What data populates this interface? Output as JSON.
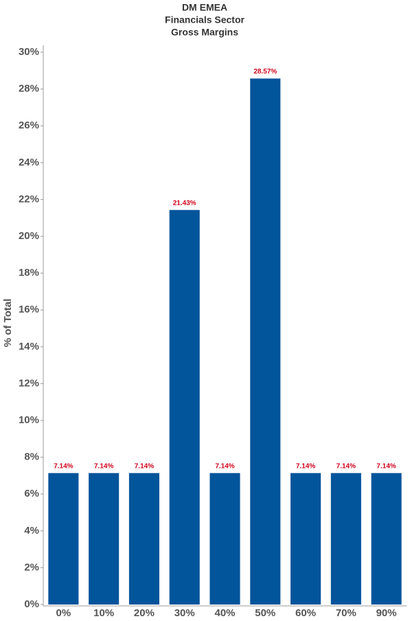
{
  "chart_data": {
    "type": "bar",
    "title": [
      "DM EMEA",
      "Financials Sector",
      "Gross Margins"
    ],
    "y_label": "% of Total",
    "categories": [
      "0%",
      "10%",
      "20%",
      "30%",
      "40%",
      "50%",
      "60%",
      "70%",
      "90%"
    ],
    "values": [
      7.14,
      7.14,
      7.14,
      21.43,
      7.14,
      28.57,
      7.14,
      7.14,
      7.14
    ],
    "value_labels": [
      "7.14%",
      "7.14%",
      "7.14%",
      "21.43%",
      "7.14%",
      "28.57%",
      "7.14%",
      "7.14%",
      "7.14%"
    ],
    "color": "#02549b",
    "label_color": "#d0021b",
    "ylim": [
      0,
      30
    ],
    "yticks": [
      {
        "value": 0,
        "label": "0%"
      },
      {
        "value": 2,
        "label": "2%"
      },
      {
        "value": 4,
        "label": "4%"
      },
      {
        "value": 6,
        "label": "6%"
      },
      {
        "value": 8,
        "label": "8%"
      },
      {
        "value": 10,
        "label": "10%"
      },
      {
        "value": 12,
        "label": "12%"
      },
      {
        "value": 14,
        "label": "14%"
      },
      {
        "value": 16,
        "label": "16%"
      },
      {
        "value": 18,
        "label": "18%"
      },
      {
        "value": 20,
        "label": "20%"
      },
      {
        "value": 22,
        "label": "22%"
      },
      {
        "value": 24,
        "label": "24%"
      },
      {
        "value": 26,
        "label": "26%"
      },
      {
        "value": 28,
        "label": "28%"
      },
      {
        "value": 30,
        "label": "30%"
      }
    ],
    "grid": false
  }
}
